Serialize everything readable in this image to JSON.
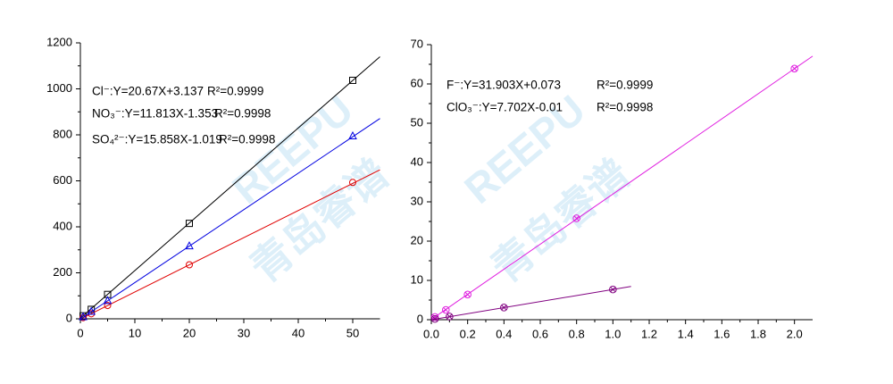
{
  "watermark": [
    "REEPU",
    "青岛睿谱"
  ],
  "chart_data": [
    {
      "type": "scatter",
      "xlim": [
        0,
        55
      ],
      "xticks": [
        0,
        10,
        20,
        30,
        40,
        50
      ],
      "ylim": [
        0,
        1200
      ],
      "yticks": [
        0,
        200,
        400,
        600,
        800,
        1000,
        1200
      ],
      "series": [
        {
          "name": "Cl⁻:Y=20.67X+3.137",
          "r2": "R²=0.9999",
          "color": "#000000",
          "marker": "square",
          "x": [
            0.5,
            2,
            5,
            20,
            50
          ],
          "values": [
            13,
            41,
            106,
            415,
            1037
          ],
          "fit": {
            "x": [
              0,
              55
            ],
            "y": [
              3.137,
              1140
            ]
          }
        },
        {
          "name": "NO₃⁻:Y=11.813X-1.353",
          "r2": "R²=0.9998",
          "color": "#e00000",
          "marker": "circle",
          "x": [
            0.5,
            2,
            5,
            20,
            50
          ],
          "values": [
            5,
            22,
            58,
            235,
            593
          ],
          "fit": {
            "x": [
              0,
              55
            ],
            "y": [
              -1.353,
              648
            ]
          }
        },
        {
          "name": "SO₄²⁻:Y=15.858X-1.019",
          "r2": "R²=0.9998",
          "color": "#0000e0",
          "marker": "triangle",
          "x": [
            0.5,
            2,
            5,
            20,
            50
          ],
          "values": [
            8,
            31,
            78,
            316,
            794
          ],
          "fit": {
            "x": [
              0,
              55
            ],
            "y": [
              -1.019,
              871
            ]
          }
        }
      ]
    },
    {
      "type": "scatter",
      "xlim": [
        0,
        2.1
      ],
      "xticks": [
        {
          "value": 0,
          "label": "0.0"
        },
        0.2,
        0.4,
        0.6,
        0.8,
        {
          "value": 1,
          "label": "1.0"
        },
        1.2,
        1.4,
        1.6,
        1.8,
        {
          "value": 2,
          "label": "2.0"
        }
      ],
      "ylim": [
        0,
        70
      ],
      "yticks": [
        0,
        10,
        20,
        30,
        40,
        50,
        60,
        70
      ],
      "series": [
        {
          "name": "F⁻:Y=31.903X+0.073",
          "r2": "R²=0.9999",
          "color": "#e020e0",
          "marker": "circle-x",
          "x": [
            0.02,
            0.08,
            0.2,
            0.8,
            2
          ],
          "values": [
            0.7,
            2.5,
            6.4,
            25.8,
            63.9
          ],
          "fit": {
            "x": [
              0,
              2.1
            ],
            "y": [
              0.073,
              67.07
            ]
          }
        },
        {
          "name": "ClO₃⁻:Y=7.702X-0.01",
          "r2": "R²=0.9998",
          "color": "#800080",
          "marker": "circle-x",
          "x": [
            0.02,
            0.1,
            0.4,
            1
          ],
          "values": [
            0.2,
            0.8,
            3.1,
            7.7
          ],
          "fit": {
            "x": [
              0,
              1.1
            ],
            "y": [
              -0.01,
              8.46
            ]
          }
        }
      ]
    }
  ]
}
